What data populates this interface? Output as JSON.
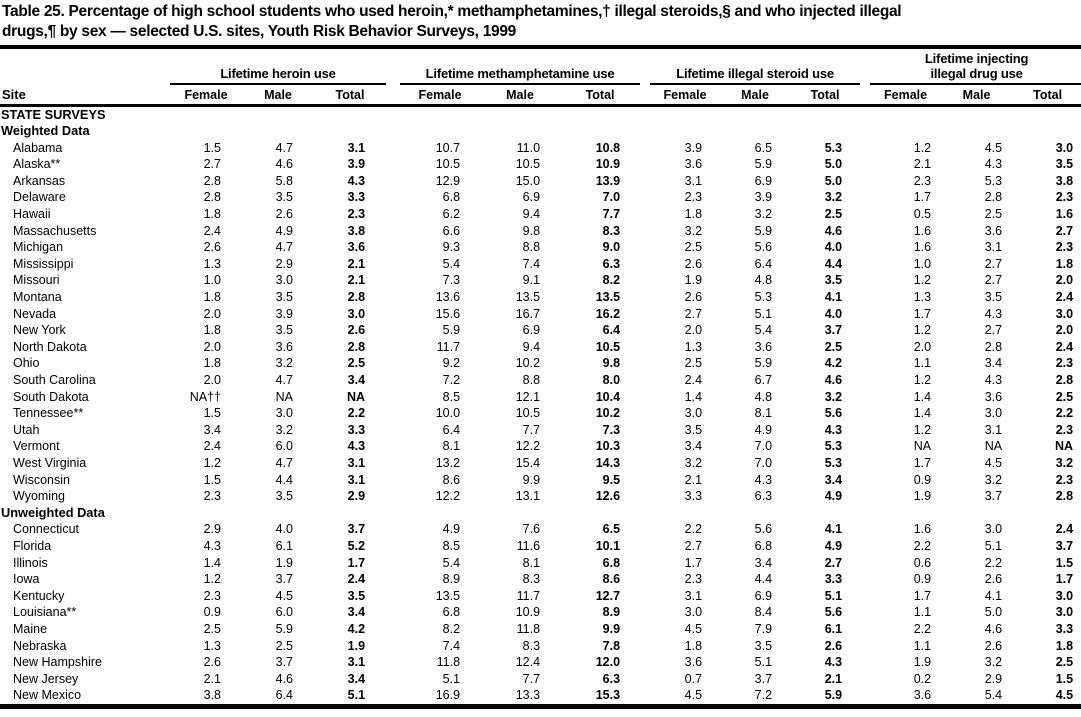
{
  "title": {
    "line1": "Table 25. Percentage of high school students who used heroin,* methamphetamines,† illegal steroids,§ and who injected illegal",
    "line2": "drugs,¶ by sex — selected U.S. sites, Youth Risk Behavior Surveys, 1999"
  },
  "table": {
    "site_header": "Site",
    "group_headers": [
      {
        "label": "Lifetime heroin use",
        "line1": "",
        "line2": "Lifetime heroin use"
      },
      {
        "label": "Lifetime methamphetamine use",
        "line1": "",
        "line2": "Lifetime methamphetamine use"
      },
      {
        "label": "Lifetime illegal steroid use",
        "line1": "",
        "line2": "Lifetime illegal steroid use"
      },
      {
        "label": "Lifetime injecting illegal drug use",
        "line1": "Lifetime injecting",
        "line2": "illegal drug use"
      }
    ],
    "sub_headers": [
      "Female",
      "Male",
      "Total"
    ],
    "sections": [
      {
        "label": "STATE SURVEYS",
        "rows": []
      },
      {
        "label": "Weighted Data",
        "rows": [
          {
            "site": "Alabama",
            "values": [
              "1.5",
              "4.7",
              "3.1",
              "10.7",
              "11.0",
              "10.8",
              "3.9",
              "6.5",
              "5.3",
              "1.2",
              "4.5",
              "3.0"
            ]
          },
          {
            "site": "Alaska**",
            "values": [
              "2.7",
              "4.6",
              "3.9",
              "10.5",
              "10.5",
              "10.9",
              "3.6",
              "5.9",
              "5.0",
              "2.1",
              "4.3",
              "3.5"
            ]
          },
          {
            "site": "Arkansas",
            "values": [
              "2.8",
              "5.8",
              "4.3",
              "12.9",
              "15.0",
              "13.9",
              "3.1",
              "6.9",
              "5.0",
              "2.3",
              "5.3",
              "3.8"
            ]
          },
          {
            "site": "Delaware",
            "values": [
              "2.8",
              "3.5",
              "3.3",
              "6.8",
              "6.9",
              "7.0",
              "2.3",
              "3.9",
              "3.2",
              "1.7",
              "2.8",
              "2.3"
            ]
          },
          {
            "site": "Hawaii",
            "values": [
              "1.8",
              "2.6",
              "2.3",
              "6.2",
              "9.4",
              "7.7",
              "1.8",
              "3.2",
              "2.5",
              "0.5",
              "2.5",
              "1.6"
            ]
          },
          {
            "site": "Massachusetts",
            "values": [
              "2.4",
              "4.9",
              "3.8",
              "6.6",
              "9.8",
              "8.3",
              "3.2",
              "5.9",
              "4.6",
              "1.6",
              "3.6",
              "2.7"
            ]
          },
          {
            "site": "Michigan",
            "values": [
              "2.6",
              "4.7",
              "3.6",
              "9.3",
              "8.8",
              "9.0",
              "2.5",
              "5.6",
              "4.0",
              "1.6",
              "3.1",
              "2.3"
            ]
          },
          {
            "site": "Mississippi",
            "values": [
              "1.3",
              "2.9",
              "2.1",
              "5.4",
              "7.4",
              "6.3",
              "2.6",
              "6.4",
              "4.4",
              "1.0",
              "2.7",
              "1.8"
            ]
          },
          {
            "site": "Missouri",
            "values": [
              "1.0",
              "3.0",
              "2.1",
              "7.3",
              "9.1",
              "8.2",
              "1.9",
              "4.8",
              "3.5",
              "1.2",
              "2.7",
              "2.0"
            ]
          },
          {
            "site": "Montana",
            "values": [
              "1.8",
              "3.5",
              "2.8",
              "13.6",
              "13.5",
              "13.5",
              "2.6",
              "5.3",
              "4.1",
              "1.3",
              "3.5",
              "2.4"
            ]
          },
          {
            "site": "Nevada",
            "values": [
              "2.0",
              "3.9",
              "3.0",
              "15.6",
              "16.7",
              "16.2",
              "2.7",
              "5.1",
              "4.0",
              "1.7",
              "4.3",
              "3.0"
            ]
          },
          {
            "site": "New York",
            "values": [
              "1.8",
              "3.5",
              "2.6",
              "5.9",
              "6.9",
              "6.4",
              "2.0",
              "5.4",
              "3.7",
              "1.2",
              "2.7",
              "2.0"
            ]
          },
          {
            "site": "North Dakota",
            "values": [
              "2.0",
              "3.6",
              "2.8",
              "11.7",
              "9.4",
              "10.5",
              "1.3",
              "3.6",
              "2.5",
              "2.0",
              "2.8",
              "2.4"
            ]
          },
          {
            "site": "Ohio",
            "values": [
              "1.8",
              "3.2",
              "2.5",
              "9.2",
              "10.2",
              "9.8",
              "2.5",
              "5.9",
              "4.2",
              "1.1",
              "3.4",
              "2.3"
            ]
          },
          {
            "site": "South Carolina",
            "values": [
              "2.0",
              "4.7",
              "3.4",
              "7.2",
              "8.8",
              "8.0",
              "2.4",
              "6.7",
              "4.6",
              "1.2",
              "4.3",
              "2.8"
            ]
          },
          {
            "site": "South Dakota",
            "values": [
              "NA††",
              "NA",
              "NA",
              "8.5",
              "12.1",
              "10.4",
              "1.4",
              "4.8",
              "3.2",
              "1.4",
              "3.6",
              "2.5"
            ]
          },
          {
            "site": "Tennessee**",
            "values": [
              "1.5",
              "3.0",
              "2.2",
              "10.0",
              "10.5",
              "10.2",
              "3.0",
              "8.1",
              "5.6",
              "1.4",
              "3.0",
              "2.2"
            ]
          },
          {
            "site": "Utah",
            "values": [
              "3.4",
              "3.2",
              "3.3",
              "6.4",
              "7.7",
              "7.3",
              "3.5",
              "4.9",
              "4.3",
              "1.2",
              "3.1",
              "2.3"
            ]
          },
          {
            "site": "Vermont",
            "values": [
              "2.4",
              "6.0",
              "4.3",
              "8.1",
              "12.2",
              "10.3",
              "3.4",
              "7.0",
              "5.3",
              "NA",
              "NA",
              "NA"
            ]
          },
          {
            "site": "West Virginia",
            "values": [
              "1.2",
              "4.7",
              "3.1",
              "13.2",
              "15.4",
              "14.3",
              "3.2",
              "7.0",
              "5.3",
              "1.7",
              "4.5",
              "3.2"
            ]
          },
          {
            "site": "Wisconsin",
            "values": [
              "1.5",
              "4.4",
              "3.1",
              "8.6",
              "9.9",
              "9.5",
              "2.1",
              "4.3",
              "3.4",
              "0.9",
              "3.2",
              "2.3"
            ]
          },
          {
            "site": "Wyoming",
            "values": [
              "2.3",
              "3.5",
              "2.9",
              "12.2",
              "13.1",
              "12.6",
              "3.3",
              "6.3",
              "4.9",
              "1.9",
              "3.7",
              "2.8"
            ]
          }
        ]
      },
      {
        "label": "Unweighted Data",
        "rows": [
          {
            "site": "Connecticut",
            "values": [
              "2.9",
              "4.0",
              "3.7",
              "4.9",
              "7.6",
              "6.5",
              "2.2",
              "5.6",
              "4.1",
              "1.6",
              "3.0",
              "2.4"
            ]
          },
          {
            "site": "Florida",
            "values": [
              "4.3",
              "6.1",
              "5.2",
              "8.5",
              "11.6",
              "10.1",
              "2.7",
              "6.8",
              "4.9",
              "2.2",
              "5.1",
              "3.7"
            ]
          },
          {
            "site": "Illinois",
            "values": [
              "1.4",
              "1.9",
              "1.7",
              "5.4",
              "8.1",
              "6.8",
              "1.7",
              "3.4",
              "2.7",
              "0.6",
              "2.2",
              "1.5"
            ]
          },
          {
            "site": "Iowa",
            "values": [
              "1.2",
              "3.7",
              "2.4",
              "8.9",
              "8.3",
              "8.6",
              "2.3",
              "4.4",
              "3.3",
              "0.9",
              "2.6",
              "1.7"
            ]
          },
          {
            "site": "Kentucky",
            "values": [
              "2.3",
              "4.5",
              "3.5",
              "13.5",
              "11.7",
              "12.7",
              "3.1",
              "6.9",
              "5.1",
              "1.7",
              "4.1",
              "3.0"
            ]
          },
          {
            "site": "Louisiana**",
            "values": [
              "0.9",
              "6.0",
              "3.4",
              "6.8",
              "10.9",
              "8.9",
              "3.0",
              "8.4",
              "5.6",
              "1.1",
              "5.0",
              "3.0"
            ]
          },
          {
            "site": "Maine",
            "values": [
              "2.5",
              "5.9",
              "4.2",
              "8.2",
              "11.8",
              "9.9",
              "4.5",
              "7.9",
              "6.1",
              "2.2",
              "4.6",
              "3.3"
            ]
          },
          {
            "site": "Nebraska",
            "values": [
              "1.3",
              "2.5",
              "1.9",
              "7.4",
              "8.3",
              "7.8",
              "1.8",
              "3.5",
              "2.6",
              "1.1",
              "2.6",
              "1.8"
            ]
          },
          {
            "site": "New Hampshire",
            "values": [
              "2.6",
              "3.7",
              "3.1",
              "11.8",
              "12.4",
              "12.0",
              "3.6",
              "5.1",
              "4.3",
              "1.9",
              "3.2",
              "2.5"
            ]
          },
          {
            "site": "New Jersey",
            "values": [
              "2.1",
              "4.6",
              "3.4",
              "5.1",
              "7.7",
              "6.3",
              "0.7",
              "3.7",
              "2.1",
              "0.2",
              "2.9",
              "1.5"
            ]
          },
          {
            "site": "New Mexico",
            "values": [
              "3.8",
              "6.4",
              "5.1",
              "16.9",
              "13.3",
              "15.3",
              "4.5",
              "7.2",
              "5.9",
              "3.6",
              "5.4",
              "4.5"
            ]
          }
        ]
      }
    ]
  },
  "colors": {
    "text": "#000000",
    "background": "#ffffff",
    "rule": "#000000"
  }
}
